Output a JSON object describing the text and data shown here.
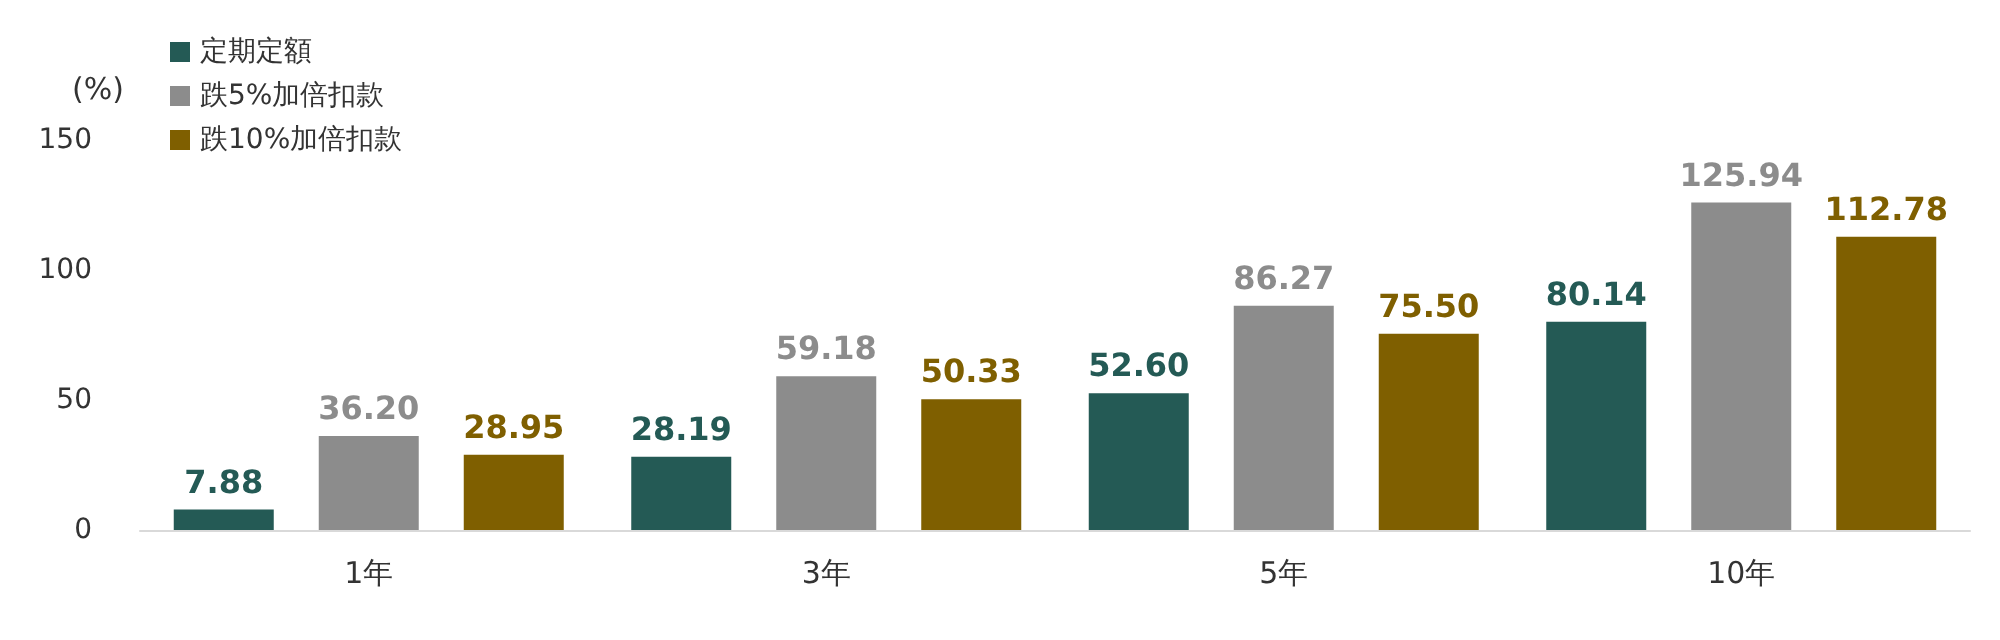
{
  "chart_data": {
    "type": "bar",
    "ylabel": "(%)",
    "categories": [
      "1年",
      "3年",
      "5年",
      "10年"
    ],
    "series": [
      {
        "name": "定期定額",
        "color": "#245a55",
        "values": [
          7.88,
          28.19,
          52.6,
          80.14
        ],
        "value_labels": [
          "7.88",
          "28.19",
          "52.60",
          "80.14"
        ]
      },
      {
        "name": "跌5%加倍扣款",
        "color": "#8c8c8c",
        "values": [
          36.2,
          59.18,
          86.27,
          125.94
        ],
        "value_labels": [
          "36.20",
          "59.18",
          "86.27",
          "125.94"
        ]
      },
      {
        "name": "跌10%加倍扣款",
        "color": "#7f5f00",
        "values": [
          28.95,
          50.33,
          75.5,
          112.78
        ],
        "value_labels": [
          "28.95",
          "50.33",
          "75.50",
          "112.78"
        ]
      }
    ],
    "ylim": [
      0,
      150
    ],
    "yticks": [
      0,
      50,
      100,
      150
    ],
    "grid": false,
    "legend": "top left"
  }
}
